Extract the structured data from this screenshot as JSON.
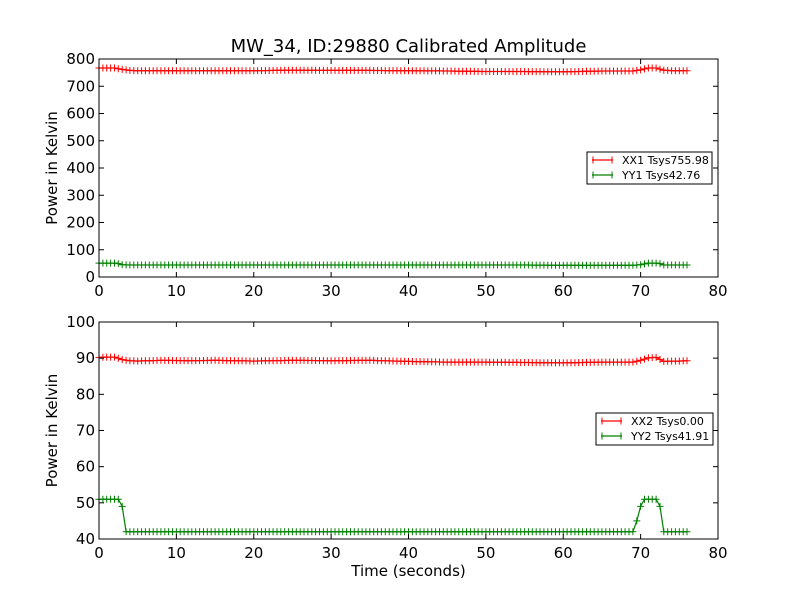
{
  "chart_data": [
    {
      "type": "line",
      "title": "MW_34, ID:29880 Calibrated Amplitude",
      "xlabel": "",
      "ylabel": "Power in Kelvin",
      "xlim": [
        0,
        80
      ],
      "ylim": [
        0,
        800
      ],
      "xticks": [
        "0",
        "10",
        "20",
        "30",
        "40",
        "50",
        "60",
        "70",
        "80"
      ],
      "yticks": [
        "0",
        "100",
        "200",
        "300",
        "400",
        "500",
        "600",
        "700",
        "800"
      ],
      "grid": false,
      "legend_position": "right",
      "series": [
        {
          "name": "XX1 Tsys755.98",
          "color": "#ff0000",
          "marker": "+",
          "x": [
            0,
            2,
            3,
            4,
            5,
            10,
            15,
            20,
            25,
            30,
            35,
            40,
            45,
            50,
            55,
            60,
            65,
            69,
            70,
            71,
            72,
            73,
            74,
            75,
            76
          ],
          "y": [
            767,
            767,
            762,
            758,
            757,
            757,
            757,
            757,
            759,
            758,
            758,
            757,
            756,
            754,
            754,
            753,
            756,
            756,
            760,
            767,
            767,
            759,
            757,
            757,
            757
          ]
        },
        {
          "name": "YY1 Tsys42.76",
          "color": "#008000",
          "marker": "+",
          "x": [
            0,
            1,
            2,
            2.5,
            3,
            4,
            10,
            20,
            30,
            40,
            50,
            55,
            60,
            65,
            69,
            70,
            71,
            72,
            72.5,
            73,
            74,
            75,
            76
          ],
          "y": [
            51,
            51,
            51,
            49,
            45,
            44,
            44,
            44,
            44,
            44,
            44,
            44,
            43,
            43,
            43,
            45,
            51,
            51,
            49,
            44,
            44,
            44,
            44
          ]
        }
      ]
    },
    {
      "type": "line",
      "title": "",
      "xlabel": "Time (seconds)",
      "ylabel": "Power in Kelvin",
      "xlim": [
        0,
        80
      ],
      "ylim": [
        40,
        100
      ],
      "xticks": [
        "0",
        "10",
        "20",
        "30",
        "40",
        "50",
        "60",
        "70",
        "80"
      ],
      "yticks": [
        "40",
        "50",
        "60",
        "70",
        "80",
        "90",
        "100"
      ],
      "grid": false,
      "legend_position": "right",
      "series": [
        {
          "name": "XX2 Tsys0.00",
          "color": "#ff0000",
          "marker": "+",
          "x": [
            0,
            1,
            2,
            3,
            4,
            5,
            8,
            12,
            15,
            20,
            25,
            30,
            35,
            40,
            45,
            50,
            55,
            60,
            65,
            69,
            70,
            71,
            72,
            73,
            74,
            75,
            76
          ],
          "y": [
            90.2,
            90.3,
            90.3,
            89.6,
            89.3,
            89.2,
            89.4,
            89.3,
            89.4,
            89.2,
            89.4,
            89.3,
            89.4,
            89.1,
            88.9,
            88.9,
            88.8,
            88.7,
            88.9,
            88.9,
            89.4,
            90.1,
            90.2,
            89.1,
            89.2,
            89.2,
            89.3
          ]
        },
        {
          "name": "YY2 Tsys41.91",
          "color": "#008000",
          "marker": "+",
          "x": [
            0,
            0.5,
            1,
            1.5,
            2,
            2.5,
            3,
            3.5,
            10,
            20,
            30,
            40,
            50,
            60,
            69,
            69.5,
            70,
            70.5,
            71,
            71.5,
            72,
            72.5,
            73,
            74,
            75,
            76
          ],
          "y": [
            51,
            51,
            51,
            51,
            51,
            51,
            49,
            42,
            42,
            42,
            42,
            42,
            42,
            42,
            42,
            45,
            49,
            51,
            51,
            51,
            51,
            49,
            42,
            42,
            42,
            42
          ]
        }
      ]
    }
  ]
}
